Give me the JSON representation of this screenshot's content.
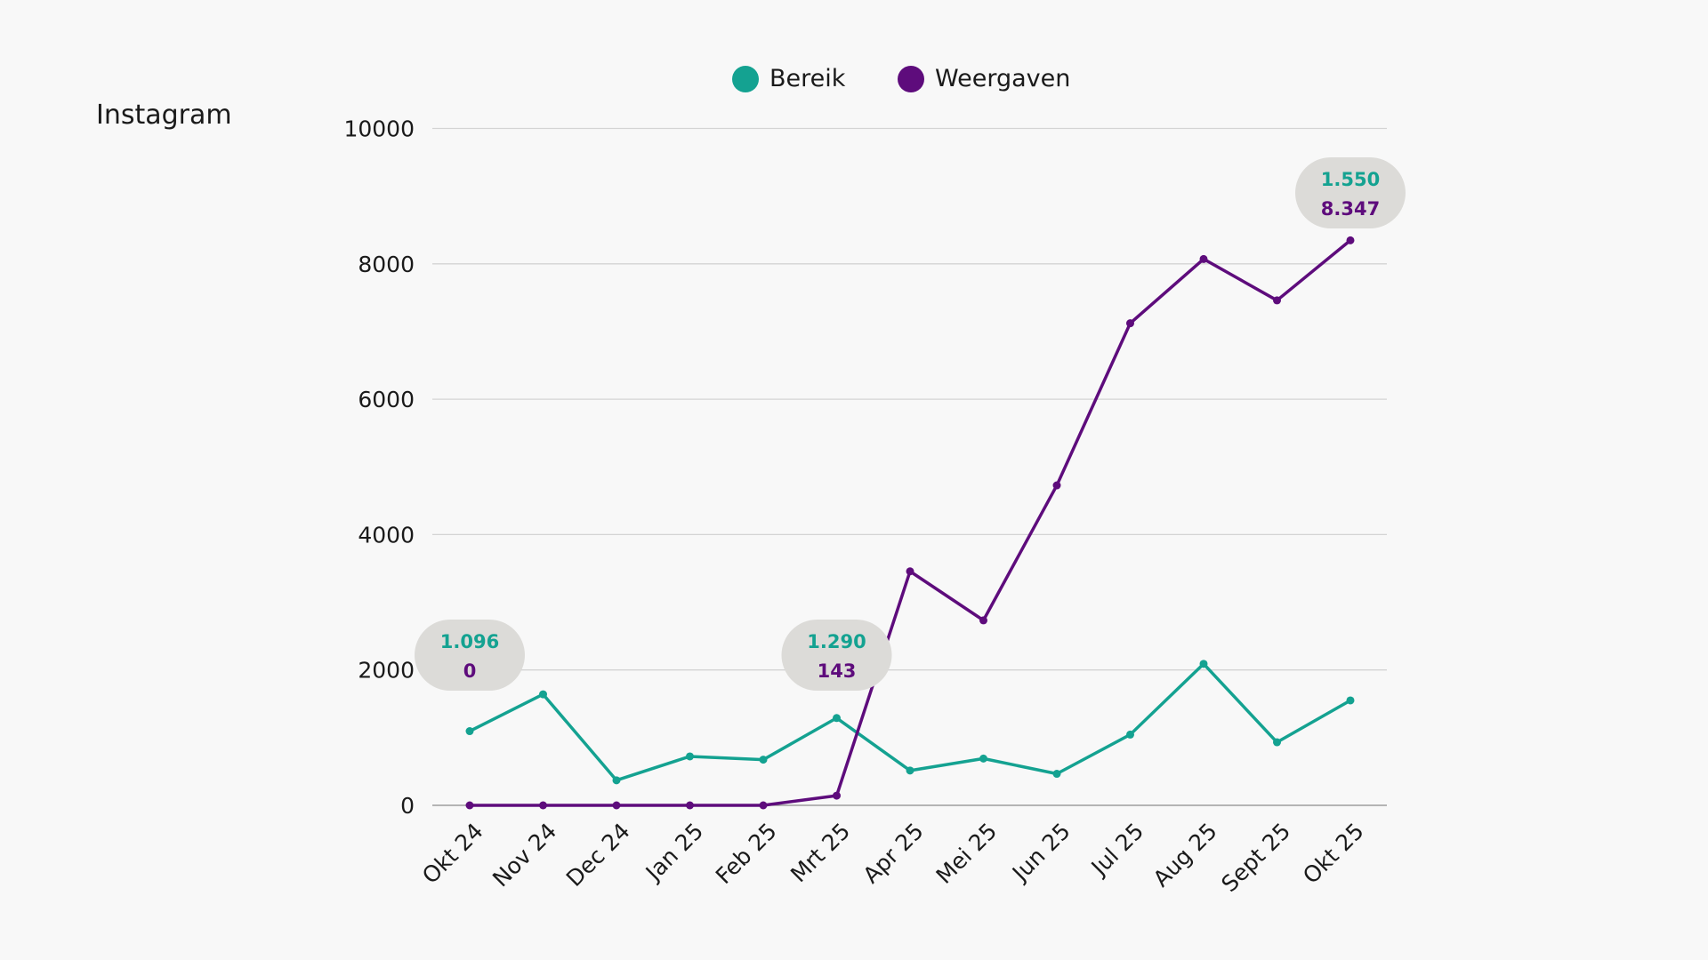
{
  "chart_data": {
    "type": "line",
    "title": "Instagram",
    "xlabel": "",
    "ylabel": "",
    "ylim": [
      0,
      10000
    ],
    "yticks": [
      0,
      2000,
      4000,
      6000,
      8000,
      10000
    ],
    "grid": true,
    "legend_position": "top-center",
    "categories": [
      "Okt 24",
      "Nov 24",
      "Dec 24",
      "Jan 25",
      "Feb 25",
      "Mrt 25",
      "Apr 25",
      "Mei 25",
      "Jun 25",
      "Jul 25",
      "Aug 25",
      "Sept 25",
      "Okt 25"
    ],
    "series": [
      {
        "name": "Bereik",
        "color": "#14a291",
        "values": [
          1096,
          1640,
          370,
          723,
          675,
          1290,
          514,
          691,
          466,
          1045,
          2090,
          932,
          1550
        ]
      },
      {
        "name": "Weergaven",
        "color": "#5e0c7c",
        "values": [
          0,
          0,
          0,
          0,
          0,
          143,
          3457,
          2733,
          4727,
          7122,
          8071,
          7460,
          8347
        ]
      }
    ],
    "annotations": [
      {
        "index": 0,
        "texts": [
          "1.096",
          "0"
        ]
      },
      {
        "index": 5,
        "texts": [
          "1.290",
          "143"
        ]
      },
      {
        "index": 12,
        "texts": [
          "1.550",
          "8.347"
        ]
      }
    ]
  }
}
